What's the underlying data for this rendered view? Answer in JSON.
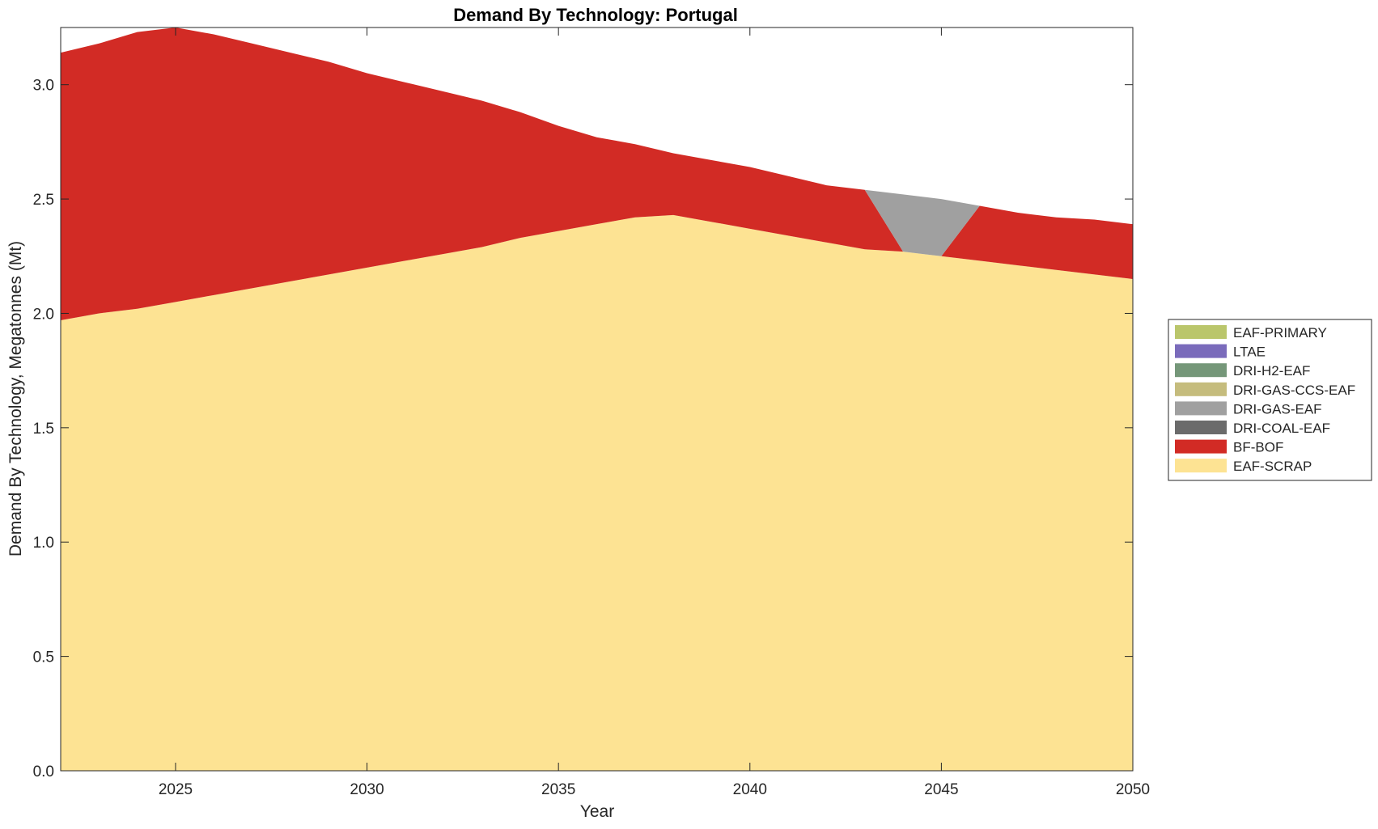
{
  "chart_data": {
    "type": "area",
    "stacked": true,
    "title": "Demand By Technology: Portugal",
    "xlabel": "Year",
    "ylabel": "Demand By Technology, Megatonnes (Mt)",
    "xlim": [
      2022,
      2050
    ],
    "ylim": [
      0,
      3.25
    ],
    "x_ticks": [
      "2025",
      "2030",
      "2035",
      "2040",
      "2045",
      "2050"
    ],
    "y_ticks": [
      "0.0",
      "0.5",
      "1.0",
      "1.5",
      "2.0",
      "2.5",
      "3.0"
    ],
    "legend_position": "right",
    "grid": false,
    "x": [
      2022,
      2023,
      2024,
      2025,
      2026,
      2027,
      2028,
      2029,
      2030,
      2031,
      2032,
      2033,
      2034,
      2035,
      2036,
      2037,
      2038,
      2039,
      2040,
      2041,
      2042,
      2043,
      2044,
      2045,
      2046,
      2047,
      2048,
      2049,
      2050
    ],
    "series": [
      {
        "name": "EAF-SCRAP",
        "color": "#fde393",
        "values": [
          1.97,
          2.0,
          2.02,
          2.05,
          2.08,
          2.11,
          2.14,
          2.17,
          2.2,
          2.23,
          2.26,
          2.29,
          2.33,
          2.36,
          2.39,
          2.42,
          2.43,
          2.4,
          2.37,
          2.34,
          2.31,
          2.28,
          2.27,
          2.25,
          2.23,
          2.21,
          2.19,
          2.17,
          2.15
        ]
      },
      {
        "name": "BF-BOF",
        "color": "#d22b25",
        "values": [
          1.17,
          1.18,
          1.21,
          1.2,
          1.14,
          1.07,
          1.0,
          0.93,
          0.85,
          0.78,
          0.71,
          0.64,
          0.55,
          0.46,
          0.38,
          0.32,
          0.27,
          0.27,
          0.27,
          0.26,
          0.25,
          0.26,
          0.0,
          0.0,
          0.24,
          0.23,
          0.23,
          0.24,
          0.24
        ]
      },
      {
        "name": "DRI-COAL-EAF",
        "color": "#6b6b6b",
        "values": [
          0,
          0,
          0,
          0,
          0,
          0,
          0,
          0,
          0,
          0,
          0,
          0,
          0,
          0,
          0,
          0,
          0,
          0,
          0,
          0,
          0,
          0,
          0,
          0,
          0,
          0,
          0,
          0,
          0
        ]
      },
      {
        "name": "DRI-GAS-EAF",
        "color": "#a0a0a0",
        "values": [
          0,
          0,
          0,
          0,
          0,
          0,
          0,
          0,
          0,
          0,
          0,
          0,
          0,
          0,
          0,
          0,
          0,
          0,
          0,
          0,
          0,
          0,
          0.25,
          0.25,
          0,
          0,
          0,
          0,
          0
        ]
      },
      {
        "name": "DRI-GAS-CCS-EAF",
        "color": "#c5bc7d",
        "values": [
          0,
          0,
          0,
          0,
          0,
          0,
          0,
          0,
          0,
          0,
          0,
          0,
          0,
          0,
          0,
          0,
          0,
          0,
          0,
          0,
          0,
          0,
          0,
          0,
          0,
          0,
          0,
          0,
          0
        ]
      },
      {
        "name": "DRI-H2-EAF",
        "color": "#759779",
        "values": [
          0,
          0,
          0,
          0,
          0,
          0,
          0,
          0,
          0,
          0,
          0,
          0,
          0,
          0,
          0,
          0,
          0,
          0,
          0,
          0,
          0,
          0,
          0,
          0,
          0,
          0,
          0,
          0,
          0
        ]
      },
      {
        "name": "LTAE",
        "color": "#7a6bbb",
        "values": [
          0,
          0,
          0,
          0,
          0,
          0,
          0,
          0,
          0,
          0,
          0,
          0,
          0,
          0,
          0,
          0,
          0,
          0,
          0,
          0,
          0,
          0,
          0,
          0,
          0,
          0,
          0,
          0,
          0
        ]
      },
      {
        "name": "EAF-PRIMARY",
        "color": "#bac66b",
        "values": [
          0,
          0,
          0,
          0,
          0,
          0,
          0,
          0,
          0,
          0,
          0,
          0,
          0,
          0,
          0,
          0,
          0,
          0,
          0,
          0,
          0,
          0,
          0,
          0,
          0,
          0,
          0,
          0,
          0
        ]
      }
    ],
    "legend_order": [
      "EAF-PRIMARY",
      "LTAE",
      "DRI-H2-EAF",
      "DRI-GAS-CCS-EAF",
      "DRI-GAS-EAF",
      "DRI-COAL-EAF",
      "BF-BOF",
      "EAF-SCRAP"
    ]
  }
}
